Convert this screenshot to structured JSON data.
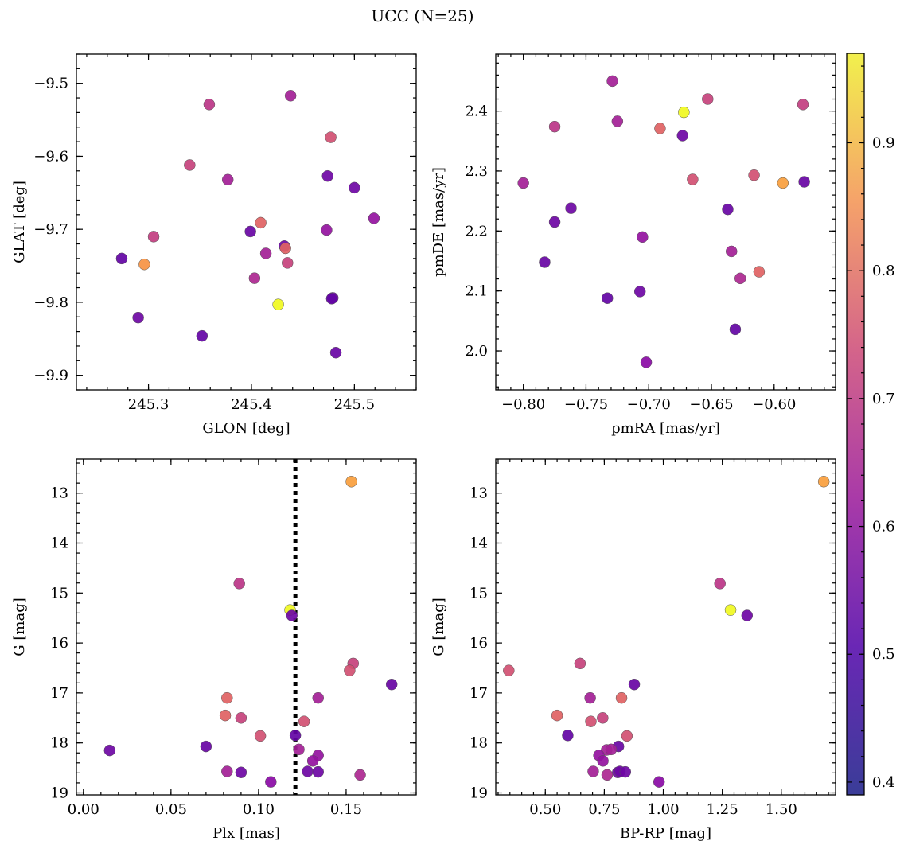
{
  "title": "UCC (N=25)",
  "chart_data": [
    {
      "type": "scatter",
      "panel": "top-left",
      "xlabel": "GLON [deg]",
      "ylabel": "GLAT [deg]",
      "xlim": [
        245.23,
        245.56
      ],
      "ylim": [
        -9.92,
        -9.46
      ],
      "y_inverted": true,
      "xticks": [
        245.3,
        245.4,
        245.5
      ],
      "xtick_labels": [
        "245.3",
        "245.4",
        "245.5"
      ],
      "yticks": [
        -9.5,
        -9.6,
        -9.7,
        -9.8,
        -9.9
      ],
      "ytick_labels": [
        "−9.5",
        "−9.6",
        "−9.7",
        "−9.8",
        "−9.9"
      ],
      "points": [
        {
          "x": 245.359,
          "y": -9.529,
          "c": 0.6
        },
        {
          "x": 245.438,
          "y": -9.517,
          "c": 0.55
        },
        {
          "x": 245.34,
          "y": -9.612,
          "c": 0.63
        },
        {
          "x": 245.377,
          "y": -9.632,
          "c": 0.55
        },
        {
          "x": 245.477,
          "y": -9.574,
          "c": 0.66
        },
        {
          "x": 245.474,
          "y": -9.627,
          "c": 0.45
        },
        {
          "x": 245.5,
          "y": -9.643,
          "c": 0.45
        },
        {
          "x": 245.519,
          "y": -9.685,
          "c": 0.52
        },
        {
          "x": 245.274,
          "y": -9.74,
          "c": 0.43
        },
        {
          "x": 245.296,
          "y": -9.748,
          "c": 0.8
        },
        {
          "x": 245.305,
          "y": -9.71,
          "c": 0.62
        },
        {
          "x": 245.399,
          "y": -9.703,
          "c": 0.44
        },
        {
          "x": 245.409,
          "y": -9.691,
          "c": 0.7
        },
        {
          "x": 245.473,
          "y": -9.701,
          "c": 0.52
        },
        {
          "x": 245.432,
          "y": -9.723,
          "c": 0.45
        },
        {
          "x": 245.433,
          "y": -9.726,
          "c": 0.7
        },
        {
          "x": 245.414,
          "y": -9.733,
          "c": 0.55
        },
        {
          "x": 245.435,
          "y": -9.746,
          "c": 0.63
        },
        {
          "x": 245.403,
          "y": -9.767,
          "c": 0.57
        },
        {
          "x": 245.426,
          "y": -9.803,
          "c": 0.97
        },
        {
          "x": 245.479,
          "y": -9.794,
          "c": 0.45
        },
        {
          "x": 245.478,
          "y": -9.795,
          "c": 0.43
        },
        {
          "x": 245.29,
          "y": -9.821,
          "c": 0.45
        },
        {
          "x": 245.352,
          "y": -9.846,
          "c": 0.43
        },
        {
          "x": 245.482,
          "y": -9.869,
          "c": 0.44
        }
      ]
    },
    {
      "type": "scatter",
      "panel": "top-right",
      "xlabel": "pmRA [mas/yr]",
      "ylabel": "pmDE [mas/yr]",
      "xlim": [
        -0.822,
        -0.551
      ],
      "ylim": [
        1.935,
        2.495
      ],
      "xticks": [
        -0.8,
        -0.75,
        -0.7,
        -0.65,
        -0.6
      ],
      "xtick_labels": [
        "−0.80",
        "−0.75",
        "−0.70",
        "−0.65",
        "−0.60"
      ],
      "yticks": [
        2.0,
        2.1,
        2.2,
        2.3,
        2.4
      ],
      "ytick_labels": [
        "2.0",
        "2.1",
        "2.2",
        "2.3",
        "2.4"
      ],
      "points": [
        {
          "x": -0.729,
          "y": 2.45,
          "c": 0.55
        },
        {
          "x": -0.653,
          "y": 2.42,
          "c": 0.63
        },
        {
          "x": -0.577,
          "y": 2.411,
          "c": 0.62
        },
        {
          "x": -0.672,
          "y": 2.398,
          "c": 0.97
        },
        {
          "x": -0.775,
          "y": 2.374,
          "c": 0.6
        },
        {
          "x": -0.725,
          "y": 2.383,
          "c": 0.55
        },
        {
          "x": -0.691,
          "y": 2.371,
          "c": 0.7
        },
        {
          "x": -0.673,
          "y": 2.359,
          "c": 0.45
        },
        {
          "x": -0.8,
          "y": 2.28,
          "c": 0.55
        },
        {
          "x": -0.665,
          "y": 2.286,
          "c": 0.66
        },
        {
          "x": -0.616,
          "y": 2.293,
          "c": 0.66
        },
        {
          "x": -0.593,
          "y": 2.28,
          "c": 0.82
        },
        {
          "x": -0.576,
          "y": 2.282,
          "c": 0.44
        },
        {
          "x": -0.762,
          "y": 2.238,
          "c": 0.45
        },
        {
          "x": -0.637,
          "y": 2.236,
          "c": 0.44
        },
        {
          "x": -0.775,
          "y": 2.215,
          "c": 0.45
        },
        {
          "x": -0.705,
          "y": 2.19,
          "c": 0.52
        },
        {
          "x": -0.634,
          "y": 2.166,
          "c": 0.55
        },
        {
          "x": -0.783,
          "y": 2.148,
          "c": 0.44
        },
        {
          "x": -0.612,
          "y": 2.132,
          "c": 0.7
        },
        {
          "x": -0.627,
          "y": 2.121,
          "c": 0.57
        },
        {
          "x": -0.707,
          "y": 2.099,
          "c": 0.45
        },
        {
          "x": -0.733,
          "y": 2.088,
          "c": 0.43
        },
        {
          "x": -0.631,
          "y": 2.036,
          "c": 0.43
        },
        {
          "x": -0.702,
          "y": 1.981,
          "c": 0.5
        }
      ]
    },
    {
      "type": "scatter",
      "panel": "bottom-left",
      "xlabel": "Plx [mas]",
      "ylabel": "G [mag]",
      "xlim": [
        -0.004,
        0.19
      ],
      "ylim": [
        19.04,
        12.32
      ],
      "y_inverted": true,
      "xticks": [
        0.0,
        0.05,
        0.1,
        0.15
      ],
      "xtick_labels": [
        "0.00",
        "0.05",
        "0.10",
        "0.15"
      ],
      "yticks": [
        13,
        14,
        15,
        16,
        17,
        18,
        19
      ],
      "ytick_labels": [
        "13",
        "14",
        "15",
        "16",
        "17",
        "18",
        "19"
      ],
      "vline": {
        "x": 0.121,
        "style": "dotted",
        "color": "#000000"
      },
      "points": [
        {
          "x": 0.153,
          "y": 12.77,
          "c": 0.82
        },
        {
          "x": 0.089,
          "y": 14.81,
          "c": 0.6
        },
        {
          "x": 0.118,
          "y": 15.34,
          "c": 0.97
        },
        {
          "x": 0.119,
          "y": 15.45,
          "c": 0.45
        },
        {
          "x": 0.154,
          "y": 16.41,
          "c": 0.63
        },
        {
          "x": 0.152,
          "y": 16.55,
          "c": 0.66
        },
        {
          "x": 0.176,
          "y": 16.83,
          "c": 0.44
        },
        {
          "x": 0.082,
          "y": 17.1,
          "c": 0.7
        },
        {
          "x": 0.134,
          "y": 17.1,
          "c": 0.55
        },
        {
          "x": 0.081,
          "y": 17.45,
          "c": 0.7
        },
        {
          "x": 0.09,
          "y": 17.5,
          "c": 0.63
        },
        {
          "x": 0.126,
          "y": 17.57,
          "c": 0.66
        },
        {
          "x": 0.101,
          "y": 17.86,
          "c": 0.66
        },
        {
          "x": 0.121,
          "y": 17.85,
          "c": 0.43
        },
        {
          "x": 0.015,
          "y": 18.15,
          "c": 0.45
        },
        {
          "x": 0.07,
          "y": 18.07,
          "c": 0.44
        },
        {
          "x": 0.123,
          "y": 18.13,
          "c": 0.55
        },
        {
          "x": 0.134,
          "y": 18.25,
          "c": 0.52
        },
        {
          "x": 0.131,
          "y": 18.36,
          "c": 0.52
        },
        {
          "x": 0.082,
          "y": 18.57,
          "c": 0.55
        },
        {
          "x": 0.09,
          "y": 18.59,
          "c": 0.45
        },
        {
          "x": 0.128,
          "y": 18.57,
          "c": 0.45
        },
        {
          "x": 0.134,
          "y": 18.58,
          "c": 0.45
        },
        {
          "x": 0.158,
          "y": 18.64,
          "c": 0.57
        },
        {
          "x": 0.107,
          "y": 18.78,
          "c": 0.5
        }
      ]
    },
    {
      "type": "scatter",
      "panel": "bottom-right",
      "xlabel": "BP-RP [mag]",
      "ylabel": "G [mag]",
      "xlim": [
        0.29,
        1.73
      ],
      "ylim": [
        19.04,
        12.32
      ],
      "y_inverted": true,
      "xticks": [
        0.5,
        0.75,
        1.0,
        1.25,
        1.5
      ],
      "xtick_labels": [
        "0.50",
        "0.75",
        "1.00",
        "1.25",
        "1.50"
      ],
      "yticks": [
        13,
        14,
        15,
        16,
        17,
        18,
        19
      ],
      "ytick_labels": [
        "13",
        "14",
        "15",
        "16",
        "17",
        "18",
        "19"
      ],
      "points": [
        {
          "x": 1.68,
          "y": 12.77,
          "c": 0.82
        },
        {
          "x": 1.24,
          "y": 14.81,
          "c": 0.6
        },
        {
          "x": 1.285,
          "y": 15.34,
          "c": 0.97
        },
        {
          "x": 1.355,
          "y": 15.45,
          "c": 0.45
        },
        {
          "x": 0.647,
          "y": 16.41,
          "c": 0.63
        },
        {
          "x": 0.345,
          "y": 16.55,
          "c": 0.66
        },
        {
          "x": 0.877,
          "y": 16.83,
          "c": 0.44
        },
        {
          "x": 0.69,
          "y": 17.1,
          "c": 0.55
        },
        {
          "x": 0.823,
          "y": 17.1,
          "c": 0.7
        },
        {
          "x": 0.55,
          "y": 17.45,
          "c": 0.7
        },
        {
          "x": 0.693,
          "y": 17.57,
          "c": 0.66
        },
        {
          "x": 0.743,
          "y": 17.5,
          "c": 0.63
        },
        {
          "x": 0.595,
          "y": 17.85,
          "c": 0.43
        },
        {
          "x": 0.846,
          "y": 17.86,
          "c": 0.66
        },
        {
          "x": 0.81,
          "y": 18.07,
          "c": 0.44
        },
        {
          "x": 0.76,
          "y": 18.14,
          "c": 0.55
        },
        {
          "x": 0.779,
          "y": 18.13,
          "c": 0.55
        },
        {
          "x": 0.727,
          "y": 18.25,
          "c": 0.52
        },
        {
          "x": 0.744,
          "y": 18.36,
          "c": 0.52
        },
        {
          "x": 0.703,
          "y": 18.57,
          "c": 0.55
        },
        {
          "x": 0.807,
          "y": 18.59,
          "c": 0.45
        },
        {
          "x": 0.816,
          "y": 18.57,
          "c": 0.45
        },
        {
          "x": 0.839,
          "y": 18.58,
          "c": 0.45
        },
        {
          "x": 0.762,
          "y": 18.64,
          "c": 0.57
        },
        {
          "x": 0.982,
          "y": 18.78,
          "c": 0.5
        }
      ]
    }
  ],
  "colorbar": {
    "colormap": "plasma",
    "range": [
      0.39,
      0.97
    ],
    "ticks": [
      0.4,
      0.5,
      0.6,
      0.7,
      0.8,
      0.9
    ],
    "tick_labels": [
      "0.4",
      "0.5",
      "0.6",
      "0.7",
      "0.8",
      "0.9"
    ]
  }
}
